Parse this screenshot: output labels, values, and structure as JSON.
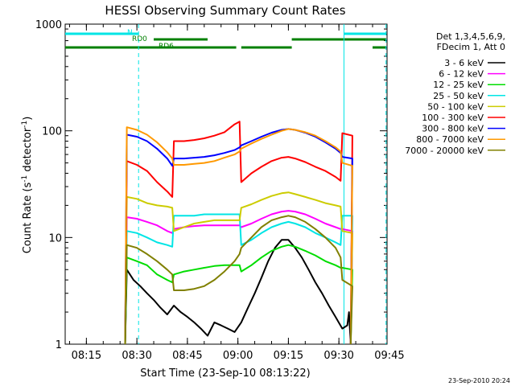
{
  "chart_data": {
    "type": "line",
    "title": "HESSI Observing Summary Count Rates",
    "xlabel": "Start Time (23-Sep-10 08:13:22)",
    "ylabel_main": "Count Rate (s",
    "ylabel_sup1": "-1",
    "ylabel_mid": " detector",
    "ylabel_sup2": "-1",
    "ylabel_end": ")",
    "y_scale": "log",
    "ylim": [
      1,
      1000
    ],
    "xlim_minutes": [
      8.7,
      104.3
    ],
    "x_ticks": [
      {
        "label": "08:15",
        "min": 15
      },
      {
        "label": "08:30",
        "min": 30
      },
      {
        "label": "08:45",
        "min": 45
      },
      {
        "label": "09:00",
        "min": 60
      },
      {
        "label": "09:15",
        "min": 75
      },
      {
        "label": "09:30",
        "min": 90
      },
      {
        "label": "09:45",
        "min": 105
      }
    ],
    "y_ticks": [
      {
        "label": "1",
        "value": 1
      },
      {
        "label": "10",
        "value": 10
      },
      {
        "label": "100",
        "value": 100
      },
      {
        "label": "1000",
        "value": 1000
      }
    ],
    "legend_header": [
      "Det 1,3,4,5,6,9,",
      "FDecim 1, Att 0"
    ],
    "legend_position": "right",
    "footer_date": "23-Sep-2010 20:24",
    "flags": [
      {
        "label": "N",
        "color": "#00e5e5",
        "row": 1,
        "segments": [
          [
            8.7,
            30.5
          ],
          [
            91.5,
            104.3
          ]
        ]
      },
      {
        "label": "RD0",
        "color": "#008000",
        "row": 2,
        "segments": [
          [
            35,
            51
          ],
          [
            76,
            104.3
          ]
        ]
      },
      {
        "label": "RD6",
        "color": "#008000",
        "row": 3,
        "segments": [
          [
            8.7,
            59.5
          ],
          [
            61,
            76
          ],
          [
            100,
            104.3
          ]
        ]
      }
    ],
    "event_lines": [
      {
        "min": 30.5,
        "style": "dashed",
        "color": "#00e5e5"
      },
      {
        "min": 91.5,
        "style": "solid",
        "color": "#00e5e5"
      },
      {
        "min": 104.0,
        "style": "dashed",
        "color": "#00e5e5"
      }
    ],
    "series": [
      {
        "name": "3 - 6 keV",
        "color": "#000000",
        "x": [
          26.5,
          27,
          29,
          31,
          33,
          35,
          37,
          39,
          41,
          43,
          45,
          47,
          49,
          51,
          53,
          55,
          57,
          59,
          61,
          63,
          65,
          67,
          69,
          71,
          73,
          75,
          77,
          79,
          81,
          83,
          85,
          87,
          89,
          91,
          92.5,
          93,
          93.5
        ],
        "y": [
          1,
          5,
          4,
          3.5,
          3,
          2.6,
          2.2,
          1.9,
          2.3,
          2,
          1.8,
          1.6,
          1.4,
          1.2,
          1.6,
          1.5,
          1.4,
          1.3,
          1.6,
          2.2,
          3,
          4.2,
          6,
          8,
          9.5,
          9.5,
          8,
          6.5,
          5,
          3.8,
          3,
          2.3,
          1.8,
          1.4,
          1.5,
          2,
          1
        ]
      },
      {
        "name": "6 - 12 keV",
        "color": "#ff00ff",
        "x": [
          26.5,
          27,
          30,
          33,
          36,
          39,
          40.5,
          41,
          44,
          47,
          50,
          53,
          56,
          59,
          60.5,
          61,
          64,
          67,
          70,
          73,
          75,
          77,
          80,
          83,
          86,
          89,
          90.5,
          91,
          94,
          93.5
        ],
        "y": [
          1,
          15.5,
          15,
          14,
          13,
          11.5,
          11,
          12,
          12.5,
          12.8,
          13,
          13,
          13,
          13,
          13,
          12.5,
          13.5,
          15,
          16.5,
          17.5,
          17.8,
          17.5,
          16.5,
          15,
          13.5,
          12.5,
          12,
          12,
          11.5,
          1
        ]
      },
      {
        "name": "12 - 25 keV",
        "color": "#00dd00",
        "x": [
          26.5,
          27,
          30,
          33,
          36,
          39,
          40.5,
          41,
          44,
          47,
          50,
          53,
          56,
          59,
          60.5,
          61,
          64,
          67,
          70,
          73,
          75,
          77,
          80,
          83,
          86,
          89,
          90.5,
          91,
          94,
          93.5
        ],
        "y": [
          1,
          6.5,
          6,
          5.5,
          4.5,
          4,
          3.8,
          4.5,
          4.8,
          5,
          5.2,
          5.4,
          5.5,
          5.5,
          5.5,
          4.8,
          5.5,
          6.5,
          7.5,
          8.2,
          8.5,
          8.2,
          7.5,
          6.8,
          6,
          5.5,
          5.2,
          5.2,
          5,
          1
        ]
      },
      {
        "name": "25 - 50 keV",
        "color": "#00e5e5",
        "x": [
          26.5,
          27,
          30,
          33,
          36,
          39,
          40.5,
          41,
          44,
          47,
          50,
          53,
          56,
          59,
          60.5,
          61,
          64,
          67,
          70,
          73,
          75,
          77,
          80,
          83,
          86,
          89,
          90.5,
          91,
          94,
          93.5
        ],
        "y": [
          1,
          11.5,
          11,
          10,
          9,
          8.5,
          8.2,
          16,
          16,
          16,
          16.5,
          16.5,
          16.5,
          16.5,
          16.5,
          8.5,
          9.5,
          11,
          12.5,
          13.5,
          14,
          13.5,
          12.5,
          11,
          10,
          9,
          8.5,
          16,
          16,
          1
        ]
      },
      {
        "name": "50 - 100 keV",
        "color": "#cccc00",
        "x": [
          26.5,
          27,
          30,
          33,
          36,
          39,
          40.5,
          41,
          44,
          47,
          50,
          53,
          56,
          59,
          60.5,
          61,
          64,
          67,
          70,
          73,
          75,
          77,
          80,
          83,
          86,
          89,
          90.5,
          91,
          94,
          93.5
        ],
        "y": [
          1,
          24,
          23,
          21,
          20,
          19.5,
          19,
          11.5,
          12.5,
          13.5,
          14,
          14.5,
          14.5,
          14.5,
          14.5,
          19,
          20.5,
          22.5,
          24.5,
          26,
          26.5,
          25.5,
          24,
          22.5,
          21,
          20,
          19.5,
          11.5,
          11,
          1
        ]
      },
      {
        "name": "100 - 300 keV",
        "color": "#ff0000",
        "x": [
          26.5,
          27,
          30,
          33,
          36,
          39,
          40.5,
          41,
          44,
          47,
          50,
          53,
          56,
          59,
          60.5,
          61,
          64,
          67,
          70,
          73,
          75,
          77,
          80,
          83,
          86,
          89,
          90.5,
          91,
          94,
          93.5
        ],
        "y": [
          1,
          52,
          48,
          42,
          33,
          27,
          24,
          80,
          80,
          82,
          85,
          90,
          97,
          115,
          122,
          33,
          40,
          46,
          52,
          56,
          57,
          55,
          51,
          46,
          42,
          37,
          34,
          95,
          90,
          1
        ]
      },
      {
        "name": "300 - 800 keV",
        "color": "#0000ff",
        "x": [
          26.5,
          27,
          30,
          33,
          36,
          39,
          40.5,
          41,
          44,
          47,
          50,
          53,
          56,
          59,
          60.5,
          61,
          64,
          67,
          70,
          73,
          75,
          77,
          80,
          83,
          86,
          89,
          90.5,
          91,
          94,
          93.5
        ],
        "y": [
          1,
          92,
          88,
          80,
          68,
          55,
          47,
          55,
          55,
          56,
          57,
          59,
          62,
          66,
          70,
          73,
          80,
          88,
          96,
          102,
          104,
          102,
          96,
          88,
          78,
          68,
          62,
          57,
          55,
          1
        ]
      },
      {
        "name": "800 - 7000 keV",
        "color": "#ff9900",
        "x": [
          26.5,
          27,
          30,
          33,
          36,
          39,
          40.5,
          41,
          44,
          47,
          50,
          53,
          56,
          59,
          60.5,
          61,
          64,
          67,
          70,
          73,
          75,
          77,
          80,
          83,
          86,
          89,
          90.5,
          91,
          94,
          93.5
        ],
        "y": [
          1,
          108,
          102,
          92,
          78,
          63,
          55,
          48,
          48,
          49,
          50,
          52,
          56,
          60,
          64,
          68,
          76,
          84,
          92,
          100,
          104,
          102,
          97,
          90,
          80,
          70,
          64,
          50,
          47,
          1
        ]
      },
      {
        "name": "7000 - 20000 keV",
        "color": "#808000",
        "x": [
          26.5,
          27,
          30,
          33,
          36,
          39,
          40.5,
          41,
          44,
          47,
          50,
          53,
          56,
          59,
          60.5,
          61,
          64,
          67,
          70,
          73,
          75,
          77,
          80,
          83,
          86,
          89,
          90.5,
          91,
          94,
          93.5
        ],
        "y": [
          1,
          8.5,
          8,
          7,
          6,
          5,
          4.5,
          3.2,
          3.2,
          3.3,
          3.5,
          4,
          4.8,
          6,
          7,
          8,
          10,
          12.5,
          14.5,
          15.5,
          16,
          15.5,
          14,
          12,
          10,
          8,
          6.5,
          4,
          3.5,
          1
        ]
      }
    ]
  }
}
